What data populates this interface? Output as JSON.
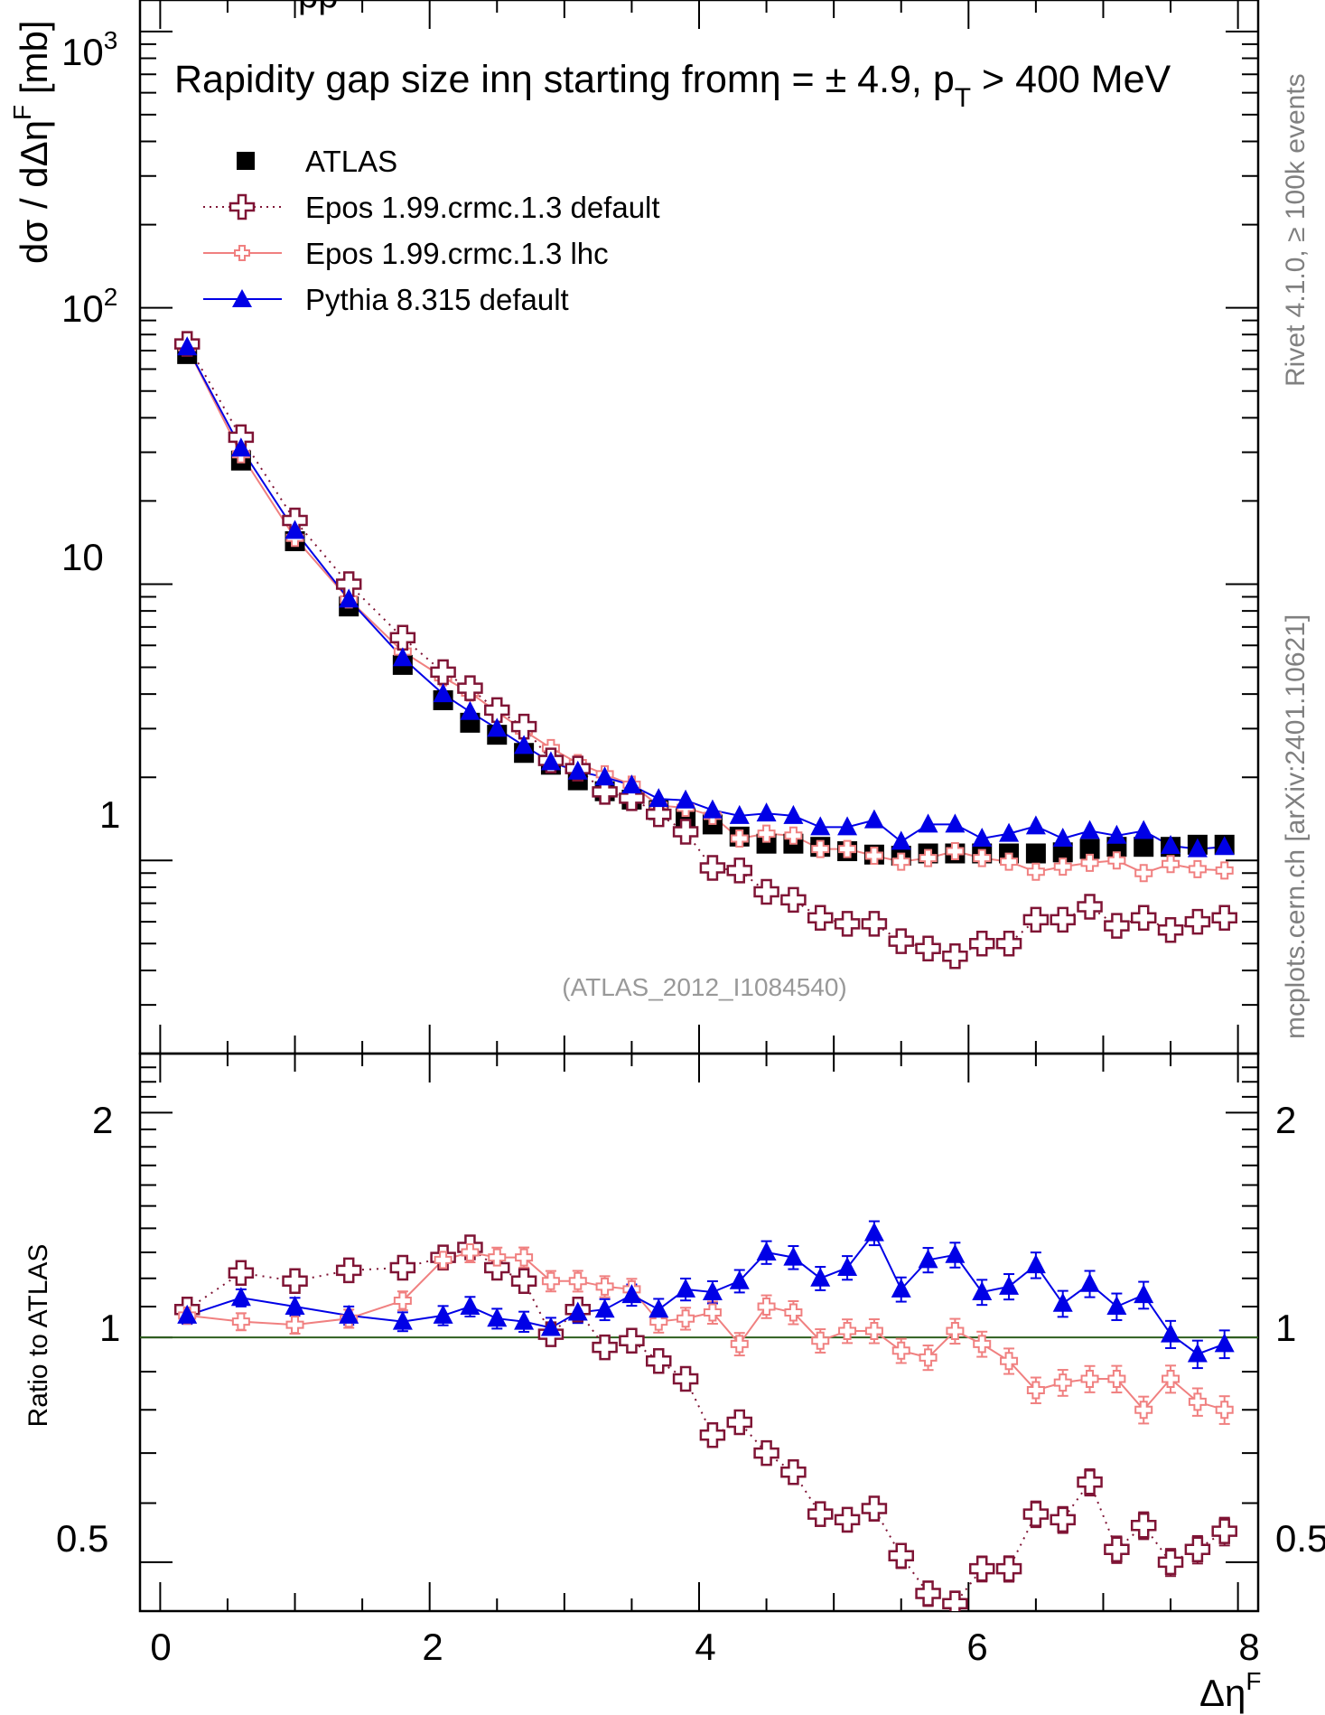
{
  "header": {
    "clipped_title": "pp"
  },
  "top_panel": {
    "title_text": "Rapidity gap size inη starting fromη = ± 4.9, p",
    "title_sub": "T",
    "title_tail": " > 400 MeV",
    "ylabel_main": "dσ / dΔη",
    "ylabel_sup": "F",
    "ylabel_unit": " [mb]",
    "yticks": [
      {
        "label": "10",
        "sup": "3"
      },
      {
        "label": "10",
        "sup": "2"
      },
      {
        "label": "10",
        "sup": ""
      },
      {
        "label": "1",
        "sup": ""
      }
    ],
    "analysis_label": "(ATLAS_2012_I1084540)"
  },
  "ratio_panel": {
    "ylabel": "Ratio to ATLAS",
    "ytick_labels": [
      "2",
      "1",
      "0.5"
    ],
    "ytick_labels_right": [
      "2",
      "1",
      "0.5"
    ]
  },
  "xaxis": {
    "tick_labels": [
      "0",
      "2",
      "4",
      "6",
      "8"
    ],
    "label_main": "Δη",
    "label_sup": "F"
  },
  "side_text": {
    "rivet": "Rivet 4.1.0, ≥ 100k events",
    "mcplots": "mcplots.cern.ch [arXiv:2401.10621]"
  },
  "colors": {
    "atlas": "#000000",
    "epos_default": "#7f1435",
    "epos_lhc": "#f08080",
    "pythia": "#0000e6",
    "ratio_line": "#2e5f1e",
    "side_text": "#808080"
  },
  "chart_data": [
    {
      "type": "line",
      "title": "Rapidity gap size inη starting fromη = ± 4.9, p_T > 400 MeV",
      "xlabel": "Δη^F",
      "ylabel": "dσ / dΔη^F [mb]",
      "xlim": [
        -0.15,
        8.15
      ],
      "ylim": [
        0.2,
        1300
      ],
      "yscale": "log",
      "x": [
        0.2,
        0.6,
        1.0,
        1.4,
        1.8,
        2.1,
        2.3,
        2.5,
        2.7,
        2.9,
        3.1,
        3.3,
        3.5,
        3.7,
        3.9,
        4.1,
        4.3,
        4.5,
        4.7,
        4.9,
        5.1,
        5.3,
        5.5,
        5.7,
        5.9,
        6.1,
        6.3,
        6.5,
        6.7,
        6.9,
        7.1,
        7.3,
        7.5,
        7.7,
        7.9
      ],
      "legend": {
        "position": "top-left"
      },
      "series": [
        {
          "name": "ATLAS",
          "style": "square",
          "values": [
            68,
            28,
            14.3,
            8.3,
            5.1,
            3.8,
            3.15,
            2.85,
            2.45,
            2.22,
            1.95,
            1.78,
            1.66,
            1.52,
            1.42,
            1.35,
            1.22,
            1.15,
            1.15,
            1.12,
            1.08,
            1.05,
            1.04,
            1.06,
            1.06,
            1.06,
            1.06,
            1.06,
            1.07,
            1.1,
            1.12,
            1.12,
            1.12,
            1.14,
            1.14
          ]
        },
        {
          "name": "Epos 1.99.crmc.1.3 default",
          "style": "open-cross-dotted",
          "values": [
            74,
            34,
            17,
            10,
            6.4,
            4.8,
            4.2,
            3.5,
            3.05,
            2.3,
            2.15,
            1.77,
            1.68,
            1.47,
            1.27,
            0.94,
            0.92,
            0.77,
            0.72,
            0.62,
            0.59,
            0.59,
            0.51,
            0.48,
            0.45,
            0.5,
            0.5,
            0.61,
            0.61,
            0.68,
            0.58,
            0.62,
            0.56,
            0.6,
            0.62
          ]
        },
        {
          "name": "Epos 1.99.crmc.1.3 lhc",
          "style": "small-cross-solid",
          "values": [
            72,
            29.5,
            14.7,
            8.8,
            5.7,
            4.6,
            4.05,
            3.45,
            2.95,
            2.55,
            2.25,
            2.05,
            1.88,
            1.58,
            1.55,
            1.45,
            1.2,
            1.25,
            1.23,
            1.1,
            1.1,
            1.04,
            0.99,
            1.02,
            1.08,
            1.02,
            0.99,
            0.91,
            0.95,
            0.98,
            1.0,
            0.9,
            0.97,
            0.93,
            0.92
          ]
        },
        {
          "name": "Pythia 8.315 default",
          "style": "filled-triangle",
          "values": [
            72,
            31,
            15.6,
            8.8,
            5.4,
            4.0,
            3.45,
            3.0,
            2.6,
            2.27,
            2.1,
            2.0,
            1.87,
            1.67,
            1.65,
            1.52,
            1.45,
            1.48,
            1.45,
            1.32,
            1.32,
            1.4,
            1.17,
            1.35,
            1.35,
            1.2,
            1.25,
            1.33,
            1.2,
            1.28,
            1.23,
            1.28,
            1.13,
            1.1,
            1.12
          ]
        }
      ]
    },
    {
      "type": "line",
      "xlabel": "Δη^F",
      "ylabel": "Ratio to ATLAS",
      "xlim": [
        -0.15,
        8.15
      ],
      "ylim": [
        0.43,
        2.4
      ],
      "yscale": "log",
      "reference_line": 1,
      "x": [
        0.2,
        0.6,
        1.0,
        1.4,
        1.8,
        2.1,
        2.3,
        2.5,
        2.7,
        2.9,
        3.1,
        3.3,
        3.5,
        3.7,
        3.9,
        4.1,
        4.3,
        4.5,
        4.7,
        4.9,
        5.1,
        5.3,
        5.5,
        5.7,
        5.9,
        6.1,
        6.3,
        6.5,
        6.7,
        6.9,
        7.1,
        7.3,
        7.5,
        7.7,
        7.9
      ],
      "series": [
        {
          "name": "Epos 1.99.crmc.1.3 default",
          "values": [
            1.09,
            1.22,
            1.19,
            1.23,
            1.24,
            1.28,
            1.32,
            1.24,
            1.19,
            1.01,
            1.09,
            0.97,
            0.99,
            0.93,
            0.88,
            0.74,
            0.77,
            0.7,
            0.66,
            0.58,
            0.57,
            0.59,
            0.51,
            0.454,
            0.44,
            0.49,
            0.49,
            0.58,
            0.57,
            0.64,
            0.52,
            0.56,
            0.5,
            0.52,
            0.55
          ]
        },
        {
          "name": "Epos 1.99.crmc.1.3 lhc",
          "values": [
            1.07,
            1.05,
            1.04,
            1.06,
            1.12,
            1.27,
            1.3,
            1.28,
            1.28,
            1.19,
            1.19,
            1.17,
            1.16,
            1.05,
            1.06,
            1.08,
            0.98,
            1.1,
            1.08,
            0.99,
            1.02,
            1.02,
            0.96,
            0.94,
            1.02,
            0.98,
            0.93,
            0.85,
            0.87,
            0.88,
            0.88,
            0.8,
            0.88,
            0.82,
            0.8
          ]
        },
        {
          "name": "Pythia 8.315 default",
          "values": [
            1.07,
            1.13,
            1.1,
            1.07,
            1.05,
            1.07,
            1.1,
            1.06,
            1.05,
            1.03,
            1.08,
            1.09,
            1.14,
            1.09,
            1.16,
            1.15,
            1.19,
            1.3,
            1.28,
            1.2,
            1.24,
            1.38,
            1.16,
            1.27,
            1.29,
            1.15,
            1.17,
            1.25,
            1.11,
            1.18,
            1.1,
            1.14,
            1.01,
            0.95,
            0.98
          ]
        }
      ]
    }
  ]
}
